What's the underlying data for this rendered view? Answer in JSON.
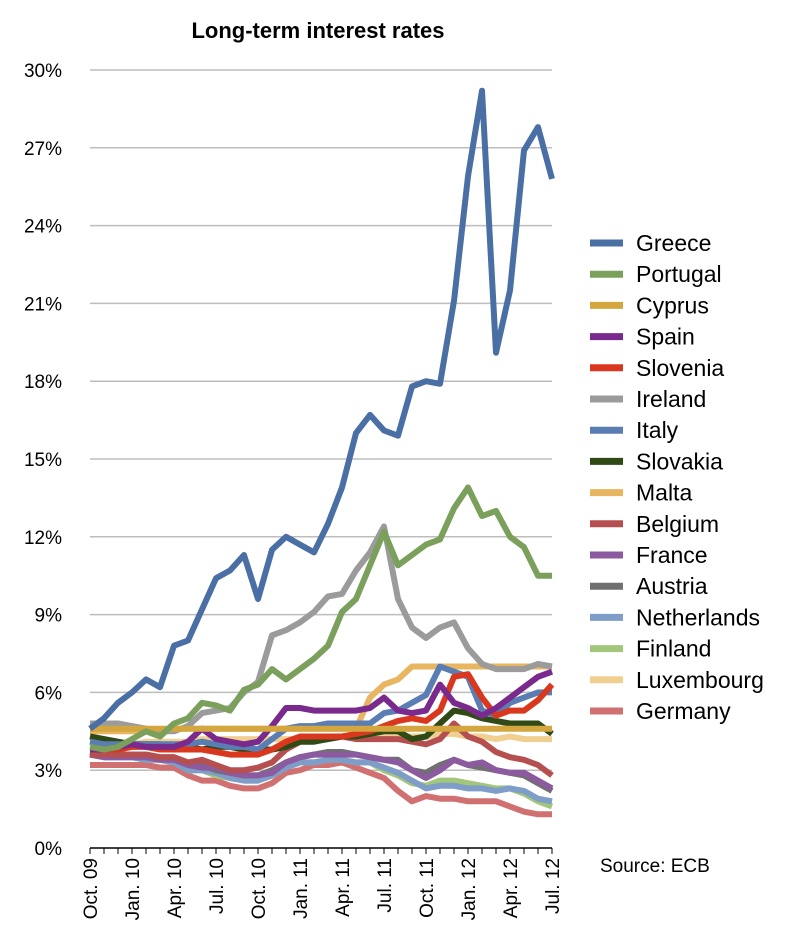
{
  "chart_data": {
    "type": "line",
    "title": "Long-term interest rates",
    "source": "Source: ECB",
    "y_ticks": [
      "0%",
      "3%",
      "6%",
      "9%",
      "12%",
      "15%",
      "18%",
      "21%",
      "24%",
      "27%",
      "30%"
    ],
    "ylim": [
      0,
      30
    ],
    "grid": true,
    "legend_position": "right",
    "x_tick_labels": [
      "Oct. 09",
      "Jan. 10",
      "Apr. 10",
      "Jul. 10",
      "Oct. 10",
      "Jan. 11",
      "Apr. 11",
      "Jul. 11",
      "Oct. 11",
      "Jan. 12",
      "Apr. 12",
      "Jul. 12"
    ],
    "x_months": [
      "Oct. 09",
      "Nov. 09",
      "Dec. 09",
      "Jan. 10",
      "Feb. 10",
      "Mar. 10",
      "Apr. 10",
      "May 10",
      "Jun. 10",
      "Jul. 10",
      "Aug. 10",
      "Sep. 10",
      "Oct. 10",
      "Nov. 10",
      "Dec. 10",
      "Jan. 11",
      "Feb. 11",
      "Mar. 11",
      "Apr. 11",
      "May 11",
      "Jun. 11",
      "Jul. 11",
      "Aug. 11",
      "Sep. 11",
      "Oct. 11",
      "Nov. 11",
      "Dec. 11",
      "Jan. 12",
      "Feb. 12",
      "Mar. 12",
      "Apr. 12",
      "May 12",
      "Jun. 12",
      "Jul. 12"
    ],
    "series": [
      {
        "name": "Greece",
        "color": "#4A6FA5",
        "values": [
          4.6,
          5.0,
          5.6,
          6.0,
          6.5,
          6.2,
          7.8,
          8.0,
          9.2,
          10.4,
          10.7,
          11.3,
          9.6,
          11.5,
          12.0,
          11.7,
          11.4,
          12.5,
          13.9,
          16.0,
          16.7,
          16.1,
          15.9,
          17.8,
          18.0,
          17.9,
          21.1,
          25.9,
          29.2,
          19.1,
          21.5,
          26.9,
          27.8,
          25.8
        ]
      },
      {
        "name": "Portugal",
        "color": "#7BA05B",
        "values": [
          3.9,
          3.8,
          3.9,
          4.2,
          4.5,
          4.3,
          4.8,
          5.0,
          5.6,
          5.5,
          5.3,
          6.1,
          6.3,
          6.9,
          6.5,
          6.9,
          7.3,
          7.8,
          9.1,
          9.6,
          10.9,
          12.2,
          10.9,
          11.3,
          11.7,
          11.9,
          13.1,
          13.9,
          12.8,
          13.0,
          12.0,
          11.6,
          10.5,
          10.5
        ]
      },
      {
        "name": "Cyprus",
        "color": "#D4A640",
        "values": [
          4.6,
          4.6,
          4.6,
          4.6,
          4.6,
          4.6,
          4.6,
          4.6,
          4.6,
          4.6,
          4.6,
          4.6,
          4.6,
          4.6,
          4.6,
          4.6,
          4.6,
          4.6,
          4.6,
          4.6,
          4.6,
          4.6,
          4.6,
          4.6,
          4.6,
          4.6,
          4.6,
          4.6,
          4.6,
          4.6,
          4.6,
          4.6,
          4.6,
          4.6
        ]
      },
      {
        "name": "Spain",
        "color": "#7A2A8C",
        "values": [
          3.8,
          3.8,
          3.9,
          4.0,
          3.9,
          3.9,
          3.9,
          4.1,
          4.6,
          4.2,
          4.1,
          4.0,
          4.1,
          4.7,
          5.4,
          5.4,
          5.3,
          5.3,
          5.3,
          5.3,
          5.4,
          5.8,
          5.3,
          5.2,
          5.3,
          6.3,
          5.6,
          5.4,
          5.1,
          5.4,
          5.8,
          6.2,
          6.6,
          6.8
        ]
      },
      {
        "name": "Slovenia",
        "color": "#D9381E",
        "values": [
          3.8,
          3.8,
          3.8,
          3.9,
          3.9,
          3.8,
          3.8,
          3.8,
          3.8,
          3.7,
          3.6,
          3.6,
          3.6,
          3.8,
          4.1,
          4.3,
          4.3,
          4.3,
          4.3,
          4.4,
          4.5,
          4.7,
          4.9,
          5.0,
          4.9,
          5.3,
          6.6,
          6.7,
          5.8,
          5.1,
          5.3,
          5.3,
          5.7,
          6.3
        ]
      },
      {
        "name": "Ireland",
        "color": "#9B9B9B",
        "values": [
          4.8,
          4.8,
          4.8,
          4.7,
          4.6,
          4.5,
          4.5,
          4.7,
          5.2,
          5.3,
          5.4,
          6.0,
          6.4,
          8.2,
          8.4,
          8.7,
          9.1,
          9.7,
          9.8,
          10.7,
          11.4,
          12.4,
          9.6,
          8.5,
          8.1,
          8.5,
          8.7,
          7.7,
          7.1,
          6.9,
          6.9,
          6.9,
          7.1,
          7.0
        ]
      },
      {
        "name": "Italy",
        "color": "#5A7DB3",
        "values": [
          4.1,
          4.0,
          4.0,
          4.0,
          4.0,
          4.0,
          4.0,
          4.0,
          4.1,
          4.0,
          3.9,
          3.9,
          3.8,
          4.2,
          4.6,
          4.7,
          4.7,
          4.8,
          4.8,
          4.8,
          4.8,
          5.2,
          5.3,
          5.6,
          5.9,
          7.0,
          6.8,
          6.6,
          5.3,
          5.1,
          5.6,
          5.8,
          6.0,
          6.0
        ]
      },
      {
        "name": "Slovakia",
        "color": "#2F4A15",
        "values": [
          4.3,
          4.2,
          4.1,
          4.0,
          4.0,
          4.0,
          3.9,
          3.9,
          3.8,
          3.9,
          3.9,
          3.8,
          3.8,
          3.8,
          3.9,
          4.1,
          4.1,
          4.2,
          4.3,
          4.3,
          4.4,
          4.5,
          4.5,
          4.2,
          4.3,
          4.8,
          5.3,
          5.2,
          5.0,
          4.9,
          4.8,
          4.8,
          4.8,
          4.4
        ]
      },
      {
        "name": "Malta",
        "color": "#E8B560",
        "values": [
          4.5,
          4.5,
          4.5,
          4.5,
          4.5,
          4.5,
          4.6,
          4.6,
          4.6,
          4.6,
          4.6,
          4.6,
          4.6,
          4.6,
          4.6,
          4.6,
          4.6,
          4.6,
          4.6,
          4.6,
          5.8,
          6.3,
          6.5,
          7.0,
          7.0,
          7.0,
          7.0,
          7.0,
          7.0,
          7.0,
          7.0,
          7.0,
          7.0,
          7.0
        ]
      },
      {
        "name": "Belgium",
        "color": "#B65050",
        "values": [
          3.6,
          3.6,
          3.6,
          3.6,
          3.6,
          3.5,
          3.5,
          3.3,
          3.4,
          3.2,
          3.0,
          3.0,
          3.1,
          3.3,
          3.8,
          4.1,
          4.2,
          4.2,
          4.3,
          4.2,
          4.2,
          4.2,
          4.2,
          4.1,
          4.0,
          4.2,
          4.8,
          4.3,
          4.1,
          3.7,
          3.5,
          3.4,
          3.2,
          2.8
        ]
      },
      {
        "name": "France",
        "color": "#8C5A9E",
        "values": [
          3.6,
          3.5,
          3.5,
          3.5,
          3.5,
          3.4,
          3.4,
          3.2,
          3.1,
          3.1,
          2.9,
          2.8,
          2.8,
          2.9,
          3.3,
          3.5,
          3.6,
          3.6,
          3.6,
          3.6,
          3.5,
          3.4,
          3.3,
          3.0,
          2.7,
          3.0,
          3.4,
          3.2,
          3.3,
          3.0,
          2.9,
          2.9,
          2.6,
          2.3
        ]
      },
      {
        "name": "Austria",
        "color": "#707070",
        "values": [
          3.7,
          3.6,
          3.6,
          3.6,
          3.6,
          3.5,
          3.5,
          3.2,
          3.2,
          3.0,
          2.9,
          2.8,
          2.8,
          3.0,
          3.3,
          3.5,
          3.6,
          3.7,
          3.7,
          3.6,
          3.5,
          3.4,
          3.4,
          3.0,
          2.9,
          3.2,
          3.4,
          3.2,
          3.1,
          3.0,
          2.9,
          2.8,
          2.5,
          2.2
        ]
      },
      {
        "name": "Netherlands",
        "color": "#7F9DC9",
        "values": [
          3.6,
          3.5,
          3.5,
          3.5,
          3.4,
          3.4,
          3.3,
          3.0,
          3.0,
          2.9,
          2.7,
          2.6,
          2.6,
          2.8,
          3.1,
          3.3,
          3.3,
          3.4,
          3.4,
          3.3,
          3.3,
          3.1,
          2.9,
          2.6,
          2.3,
          2.4,
          2.4,
          2.3,
          2.3,
          2.2,
          2.3,
          2.2,
          1.9,
          1.8
        ]
      },
      {
        "name": "Finland",
        "color": "#A2C67A",
        "values": [
          3.6,
          3.5,
          3.5,
          3.5,
          3.4,
          3.4,
          3.3,
          3.0,
          3.0,
          2.8,
          2.7,
          2.6,
          2.6,
          2.8,
          3.1,
          3.3,
          3.3,
          3.4,
          3.4,
          3.3,
          3.3,
          3.0,
          2.8,
          2.5,
          2.4,
          2.6,
          2.6,
          2.5,
          2.4,
          2.3,
          2.3,
          2.1,
          1.8,
          1.6
        ]
      },
      {
        "name": "Luxembourg",
        "color": "#F0D090",
        "values": [
          4.0,
          4.0,
          4.0,
          4.0,
          4.1,
          4.1,
          4.1,
          4.1,
          4.2,
          4.2,
          4.2,
          4.2,
          4.2,
          4.2,
          4.2,
          4.2,
          4.2,
          4.3,
          4.3,
          4.3,
          4.3,
          4.3,
          4.3,
          4.3,
          4.3,
          4.4,
          4.4,
          4.3,
          4.3,
          4.2,
          4.3,
          4.2,
          4.2,
          4.2
        ]
      },
      {
        "name": "Germany",
        "color": "#D07070",
        "values": [
          3.2,
          3.2,
          3.2,
          3.2,
          3.2,
          3.1,
          3.1,
          2.8,
          2.6,
          2.6,
          2.4,
          2.3,
          2.3,
          2.5,
          2.9,
          3.0,
          3.2,
          3.2,
          3.3,
          3.1,
          2.9,
          2.7,
          2.2,
          1.8,
          2.0,
          1.9,
          1.9,
          1.8,
          1.8,
          1.8,
          1.6,
          1.4,
          1.3,
          1.3
        ]
      }
    ]
  }
}
